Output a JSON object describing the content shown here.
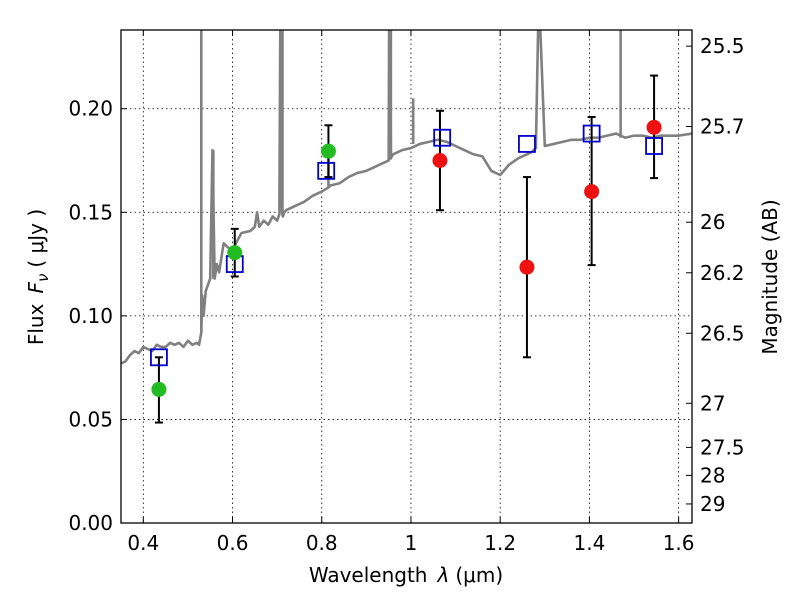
{
  "chart_data": {
    "type": "scatter",
    "title": "",
    "xlabel": "Wavelength",
    "xlabel_symbol": "λ",
    "xlabel_unit": "(μm)",
    "ylabel": "Flux",
    "ylabel_symbol": "F",
    "ylabel_subscript": "ν",
    "ylabel_unit": "( μJy )",
    "y2label": "Magnitude (AB)",
    "xlim": [
      0.35,
      1.63
    ],
    "ylim": [
      0.0,
      0.238
    ],
    "xticks": [
      0.4,
      0.6,
      0.8,
      1.0,
      1.2,
      1.4,
      1.6
    ],
    "xtick_labels": [
      "0.4",
      "0.6",
      "0.8",
      "1",
      "1.2",
      "1.4",
      "1.6"
    ],
    "yticks": [
      0.0,
      0.05,
      0.1,
      0.15,
      0.2
    ],
    "ytick_labels": [
      "0.00",
      "0.05",
      "0.10",
      "0.15",
      "0.20"
    ],
    "y2ticks": [
      {
        "label": "25.5",
        "flux": 0.2302
      },
      {
        "label": "25.7",
        "flux": 0.1914
      },
      {
        "label": "26",
        "flux": 0.1452
      },
      {
        "label": "26.2",
        "flux": 0.1208
      },
      {
        "label": "26.5",
        "flux": 0.0916
      },
      {
        "label": "27",
        "flux": 0.0578
      },
      {
        "label": "27.5",
        "flux": 0.0365
      },
      {
        "label": "28",
        "flux": 0.023
      },
      {
        "label": "29",
        "flux": 0.0092
      }
    ],
    "grid": true,
    "colors": {
      "model": "#808080",
      "green": "#22bb22",
      "red": "#ee1111",
      "square": "#0000cc",
      "errorbar": "#000000"
    },
    "model_sed": {
      "x": [
        0.35,
        0.36,
        0.37,
        0.38,
        0.39,
        0.4,
        0.41,
        0.42,
        0.43,
        0.44,
        0.45,
        0.46,
        0.47,
        0.48,
        0.49,
        0.5,
        0.51,
        0.52,
        0.525,
        0.53,
        0.532,
        0.535,
        0.54,
        0.55,
        0.555,
        0.56,
        0.565,
        0.57,
        0.58,
        0.59,
        0.6,
        0.62,
        0.64,
        0.65,
        0.655,
        0.66,
        0.67,
        0.68,
        0.69,
        0.7,
        0.705,
        0.707,
        0.709,
        0.711,
        0.713,
        0.716,
        0.72,
        0.74,
        0.76,
        0.78,
        0.8,
        0.815,
        0.82,
        0.84,
        0.86,
        0.88,
        0.9,
        0.92,
        0.94,
        0.95,
        0.951,
        0.953,
        0.955,
        0.957,
        0.96,
        0.98,
        1.0,
        1.02,
        1.04,
        1.06,
        1.08,
        1.1,
        1.12,
        1.14,
        1.16,
        1.18,
        1.2,
        1.22,
        1.24,
        1.26,
        1.27,
        1.28,
        1.285,
        1.29,
        1.3,
        1.32,
        1.34,
        1.36,
        1.38,
        1.4,
        1.42,
        1.44,
        1.46,
        1.48,
        1.5,
        1.52,
        1.54,
        1.56,
        1.58,
        1.6,
        1.63
      ],
      "y": [
        0.077,
        0.078,
        0.081,
        0.083,
        0.082,
        0.085,
        0.084,
        0.083,
        0.086,
        0.085,
        0.085,
        0.087,
        0.086,
        0.087,
        0.085,
        0.088,
        0.086,
        0.087,
        0.086,
        0.092,
        0.11,
        0.1,
        0.112,
        0.118,
        0.18,
        0.118,
        0.125,
        0.121,
        0.135,
        0.133,
        0.132,
        0.14,
        0.141,
        0.143,
        0.15,
        0.143,
        0.146,
        0.144,
        0.148,
        0.146,
        0.149,
        0.238,
        0.238,
        0.15,
        0.148,
        0.15,
        0.151,
        0.153,
        0.155,
        0.158,
        0.16,
        0.162,
        0.163,
        0.164,
        0.167,
        0.169,
        0.17,
        0.172,
        0.174,
        0.175,
        0.238,
        0.238,
        0.176,
        0.177,
        0.178,
        0.18,
        0.181,
        0.183,
        0.184,
        0.185,
        0.184,
        0.182,
        0.18,
        0.178,
        0.177,
        0.17,
        0.168,
        0.173,
        0.176,
        0.178,
        0.179,
        0.181,
        0.238,
        0.238,
        0.182,
        0.183,
        0.184,
        0.185,
        0.185,
        0.186,
        0.186,
        0.187,
        0.188,
        0.186,
        0.187,
        0.187,
        0.186,
        0.187,
        0.187,
        0.187,
        0.188
      ]
    },
    "model_spikes": [
      {
        "x": 0.53,
        "y": 0.238
      },
      {
        "x": 0.557,
        "y": 0.18
      },
      {
        "x": 0.712,
        "y": 0.238
      },
      {
        "x": 0.815,
        "y": 0.178
      },
      {
        "x": 0.955,
        "y": 0.238
      },
      {
        "x": 1.005,
        "y": 0.205
      },
      {
        "x": 1.286,
        "y": 0.238
      },
      {
        "x": 1.47,
        "y": 0.238
      }
    ],
    "model_squares": {
      "x": [
        0.435,
        0.605,
        0.81,
        1.07,
        1.26,
        1.405,
        1.545
      ],
      "y": [
        0.08,
        0.125,
        0.17,
        0.186,
        0.183,
        0.188,
        0.182
      ]
    },
    "green_points": [
      {
        "x": 0.435,
        "y": 0.0645,
        "err_low": 0.0485,
        "err_high": 0.08
      },
      {
        "x": 0.605,
        "y": 0.1305,
        "err_low": 0.119,
        "err_high": 0.142
      },
      {
        "x": 0.815,
        "y": 0.1795,
        "err_low": 0.167,
        "err_high": 0.192
      }
    ],
    "red_points": [
      {
        "x": 1.065,
        "y": 0.175,
        "err_low": 0.151,
        "err_high": 0.199
      },
      {
        "x": 1.26,
        "y": 0.1235,
        "err_low": 0.08,
        "err_high": 0.167
      },
      {
        "x": 1.405,
        "y": 0.16,
        "err_low": 0.1245,
        "err_high": 0.196
      },
      {
        "x": 1.545,
        "y": 0.191,
        "err_low": 0.1665,
        "err_high": 0.216
      }
    ]
  }
}
